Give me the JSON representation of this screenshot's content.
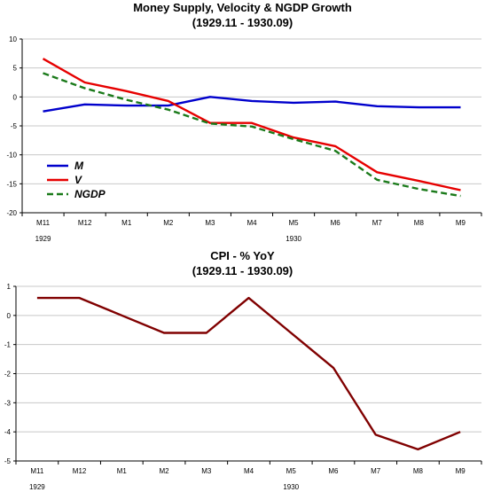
{
  "chart_data": [
    {
      "type": "line",
      "title": "Money Supply, Velocity & NGDP Growth",
      "subtitle": "(1929.11 - 1930.09)",
      "categories": [
        "M11",
        "M12",
        "M1",
        "M2",
        "M3",
        "M4",
        "M5",
        "M6",
        "M7",
        "M8",
        "M9"
      ],
      "year_labels": [
        {
          "label": "1929",
          "at": "M11"
        },
        {
          "label": "1930",
          "at": "M5"
        }
      ],
      "ylim": [
        -20,
        10
      ],
      "yticks": [
        10,
        5,
        0,
        -5,
        -10,
        -15,
        -20
      ],
      "grid": true,
      "legend": "bottom-left",
      "series": [
        {
          "name": "M",
          "color": "#0000cc",
          "dash": "solid",
          "values": [
            -2.5,
            -1.3,
            -1.5,
            -1.5,
            0.0,
            -0.7,
            -1.0,
            -0.8,
            -1.6,
            -1.8,
            -1.8
          ]
        },
        {
          "name": "V",
          "color": "#e60000",
          "dash": "solid",
          "values": [
            6.6,
            2.5,
            1.0,
            -0.7,
            -4.5,
            -4.5,
            -7.0,
            -8.5,
            -13.0,
            -14.5,
            -16.1
          ]
        },
        {
          "name": "NGDP",
          "color": "#1a7a1a",
          "dash": "dashed",
          "values": [
            4.1,
            1.5,
            -0.5,
            -2.2,
            -4.6,
            -5.1,
            -7.3,
            -9.3,
            -14.3,
            -15.9,
            -17.1
          ]
        }
      ]
    },
    {
      "type": "line",
      "title": "CPI - % YoY",
      "subtitle": "(1929.11 - 1930.09)",
      "categories": [
        "M11",
        "M12",
        "M1",
        "M2",
        "M3",
        "M4",
        "M5",
        "M6",
        "M7",
        "M8",
        "M9"
      ],
      "year_labels": [
        {
          "label": "1929",
          "at": "M11"
        },
        {
          "label": "1930",
          "at": "M5"
        }
      ],
      "ylim": [
        -5,
        1
      ],
      "yticks": [
        1,
        0,
        -1,
        -2,
        -3,
        -4,
        -5
      ],
      "grid": true,
      "legend": "none",
      "series": [
        {
          "name": "",
          "color": "#800000",
          "dash": "solid",
          "values": [
            0.6,
            0.6,
            0.0,
            -0.6,
            -0.6,
            0.6,
            -0.6,
            -1.8,
            -4.1,
            -4.6,
            -4.0
          ]
        }
      ]
    }
  ]
}
